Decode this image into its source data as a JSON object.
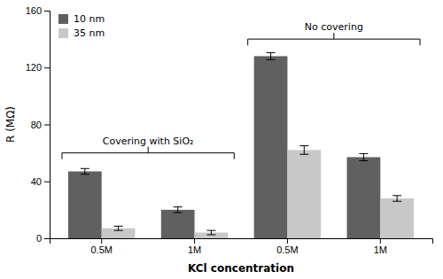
{
  "chart_data": {
    "type": "bar",
    "categories": [
      "0.5M",
      "1M",
      "0.5M",
      "1M"
    ],
    "series": [
      {
        "name": "10 nm",
        "color": "#606060",
        "values": [
          47,
          20,
          128,
          57
        ],
        "errors": [
          2,
          2,
          2.5,
          2.5
        ]
      },
      {
        "name": "35 nm",
        "color": "#c8c8c8",
        "values": [
          7,
          4,
          62,
          28
        ],
        "errors": [
          1.5,
          1.5,
          3,
          2
        ]
      }
    ],
    "x_label": "KCl concentration",
    "y_label": "R (MΩ)",
    "ylim": [
      0,
      160
    ],
    "yticks": [
      0,
      40,
      80,
      120,
      160
    ],
    "legend": "upper left",
    "grid": false,
    "annotations": [
      {
        "text": "Covering with SiO₂",
        "y": 60
      },
      {
        "text": "No covering",
        "y": 140
      }
    ]
  }
}
